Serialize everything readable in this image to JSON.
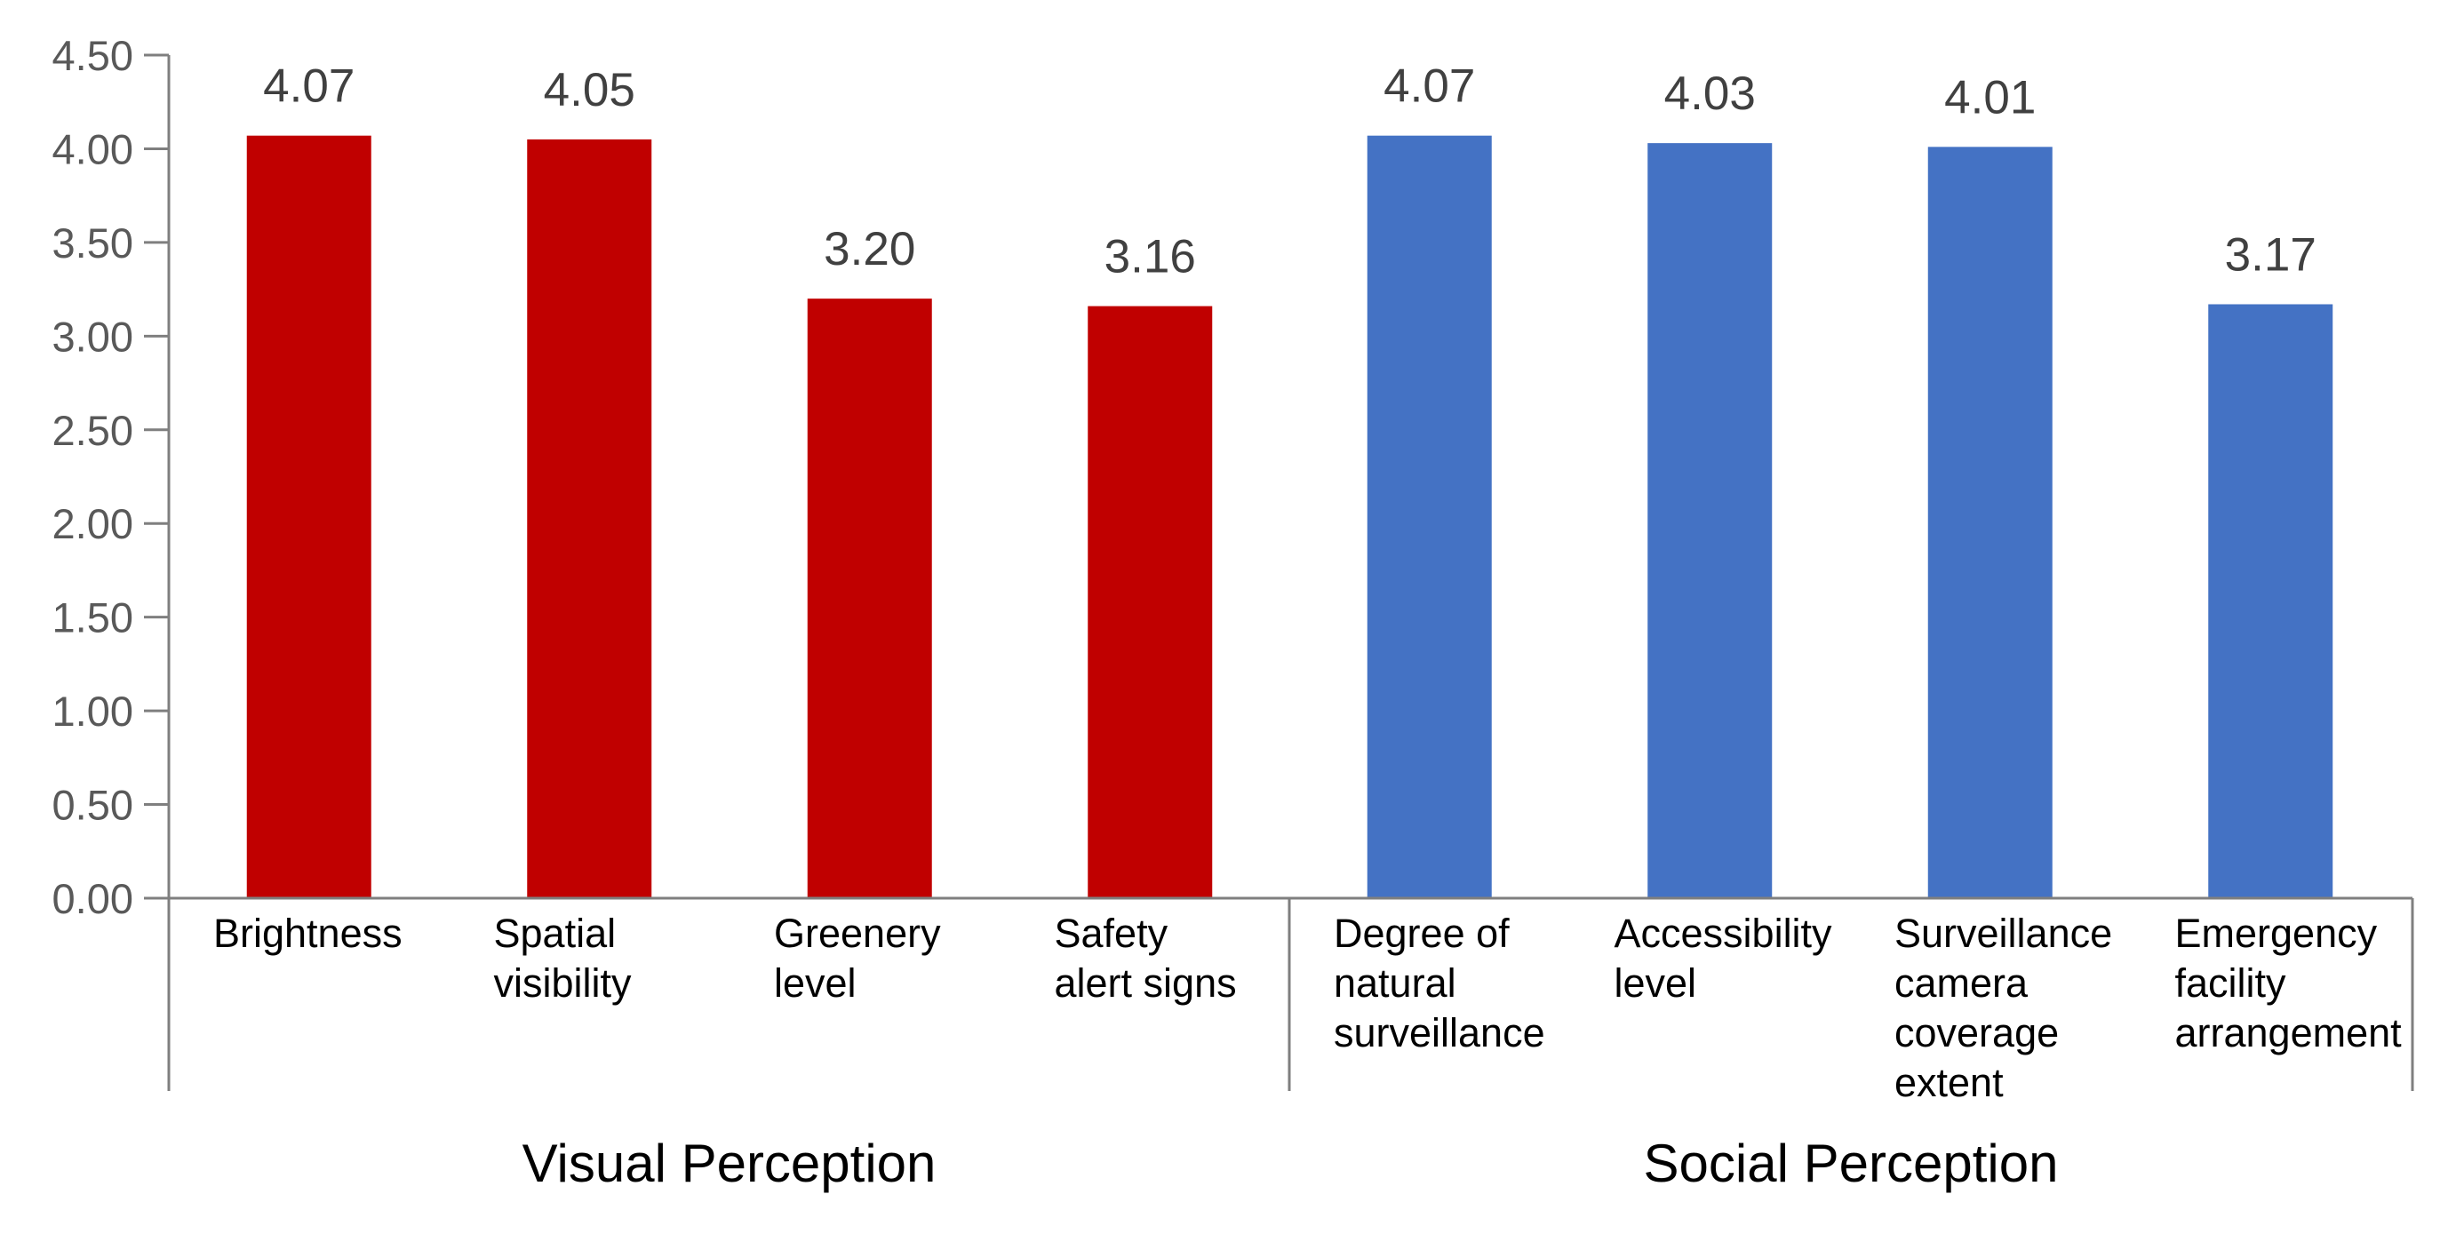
{
  "chart_data": {
    "type": "bar",
    "ylim": [
      0,
      4.5
    ],
    "yticks": [
      "0.00",
      "0.50",
      "1.00",
      "1.50",
      "2.00",
      "2.50",
      "3.00",
      "3.50",
      "4.00",
      "4.50"
    ],
    "grid": false,
    "legend": "none",
    "groups": [
      {
        "label": "Visual Perception",
        "color": "#C00000",
        "categories": [
          {
            "lines": [
              "Brightness"
            ],
            "value": 4.07,
            "label": "4.07"
          },
          {
            "lines": [
              "Spatial",
              "visibility"
            ],
            "value": 4.05,
            "label": "4.05"
          },
          {
            "lines": [
              "Greenery",
              "level"
            ],
            "value": 3.2,
            "label": "3.20"
          },
          {
            "lines": [
              "Safety",
              "alert signs"
            ],
            "value": 3.16,
            "label": "3.16"
          }
        ]
      },
      {
        "label": "Social Perception",
        "color": "#4472C4",
        "categories": [
          {
            "lines": [
              "Degree of",
              "natural",
              "surveillance"
            ],
            "value": 4.07,
            "label": "4.07"
          },
          {
            "lines": [
              "Accessibility",
              "level"
            ],
            "value": 4.03,
            "label": "4.03"
          },
          {
            "lines": [
              "Surveillance",
              "camera",
              "coverage",
              "extent"
            ],
            "value": 4.01,
            "label": "4.01"
          },
          {
            "lines": [
              "Emergency",
              "facility",
              "arrangement"
            ],
            "value": 3.17,
            "label": "3.17"
          }
        ]
      }
    ],
    "colors": {
      "axis": "#7F7F7F",
      "tick_text": "#595959",
      "value_text": "#404040",
      "category_text": "#000000"
    }
  }
}
